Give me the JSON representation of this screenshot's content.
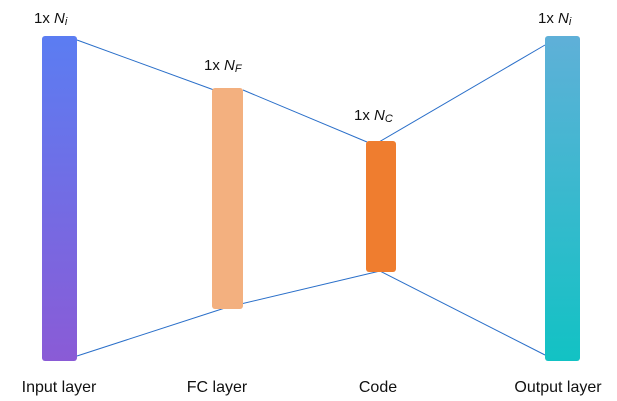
{
  "layers": [
    {
      "id": "input",
      "label": "Input layer",
      "dim_prefix": "1x ",
      "dim_var": "N",
      "dim_sub": "i",
      "color_top": "#5b7df2",
      "color_bottom": "#8a5bd6"
    },
    {
      "id": "fc",
      "label": "FC layer",
      "dim_prefix": "1x ",
      "dim_var": "N",
      "dim_sub": "F",
      "color": "#f3b07f"
    },
    {
      "id": "code",
      "label": "Code",
      "dim_prefix": "1x ",
      "dim_var": "N",
      "dim_sub": "C",
      "color": "#ef7d2f"
    },
    {
      "id": "output",
      "label": "Output layer",
      "dim_prefix": "1x ",
      "dim_var": "N",
      "dim_sub": "i",
      "color_top": "#5fb0d8",
      "color_bottom": "#12c2c4"
    }
  ],
  "connector_color": "#2a6fc9"
}
